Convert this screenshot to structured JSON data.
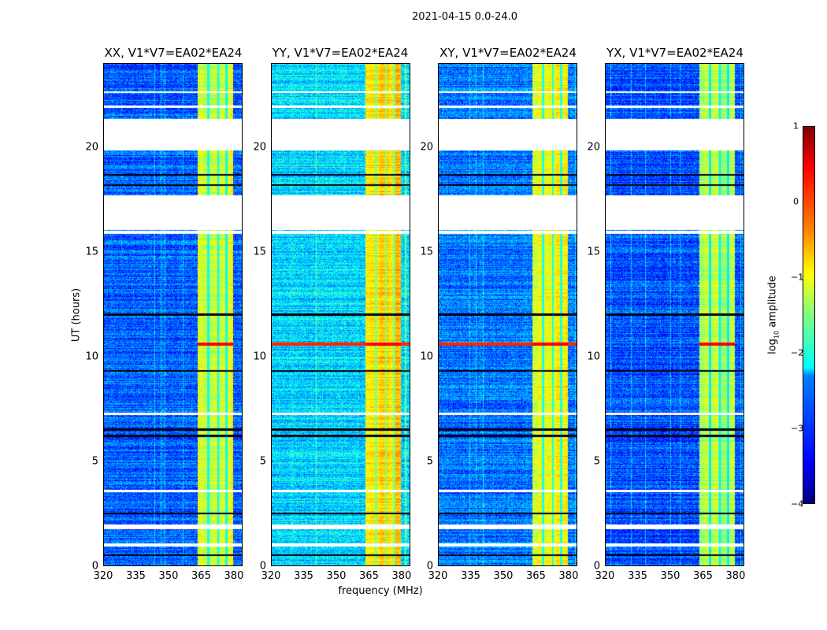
{
  "chart_data": {
    "type": "heatmap",
    "title": "2021-04-15 0.0-24.0",
    "xlabel": "frequency (MHz)",
    "ylabel": "UT (hours)",
    "xlim": [
      320,
      384
    ],
    "ylim": [
      0,
      24
    ],
    "xticks": [
      "320",
      "335",
      "350",
      "365",
      "380"
    ],
    "xtick_values": [
      320,
      335,
      350,
      365,
      380
    ],
    "yticks": [
      "0",
      "5",
      "10",
      "15",
      "20"
    ],
    "ytick_values": [
      0,
      5,
      10,
      15,
      20
    ],
    "panels": [
      {
        "title": "XX, V1*V7=EA02*EA24",
        "background_level": -2.9,
        "band_level": -1.1,
        "full_width_rfi": false
      },
      {
        "title": "YY, V1*V7=EA02*EA24",
        "background_level": -2.3,
        "band_level": -0.7,
        "full_width_rfi": true
      },
      {
        "title": "XY, V1*V7=EA02*EA24",
        "background_level": -2.8,
        "band_level": -1.0,
        "full_width_rfi": true
      },
      {
        "title": "YX, V1*V7=EA02*EA24",
        "background_level": -3.0,
        "band_level": -1.3,
        "full_width_rfi": false
      }
    ],
    "rfi_band_mhz": [
      363.5,
      380
    ],
    "band_gap_channels_mhz": [
      368.5,
      373,
      377
    ],
    "flagged_time_ranges": [
      [
        0.9,
        1.05
      ],
      [
        1.75,
        1.95
      ],
      [
        3.5,
        3.6
      ],
      [
        7.2,
        7.3
      ],
      [
        15.85,
        16.0
      ],
      [
        16.05,
        17.7
      ],
      [
        19.85,
        21.35
      ],
      [
        21.9,
        22.0
      ],
      [
        22.6,
        22.7
      ]
    ],
    "dark_time_lines": [
      0.5,
      2.5,
      6.2,
      6.5,
      9.3,
      12.0,
      18.2,
      18.7
    ],
    "strong_rfi_time": 10.6,
    "colorbar": {
      "label_prefix": "log",
      "label_sub": "10",
      "label_suffix": " amplitude",
      "range": [
        -4,
        1
      ],
      "ticks": [
        "−4",
        "−3",
        "−2",
        "−1",
        "0",
        "1"
      ],
      "tick_values": [
        -4,
        -3,
        -2,
        -1,
        0,
        1
      ],
      "colormap": "jet"
    }
  }
}
